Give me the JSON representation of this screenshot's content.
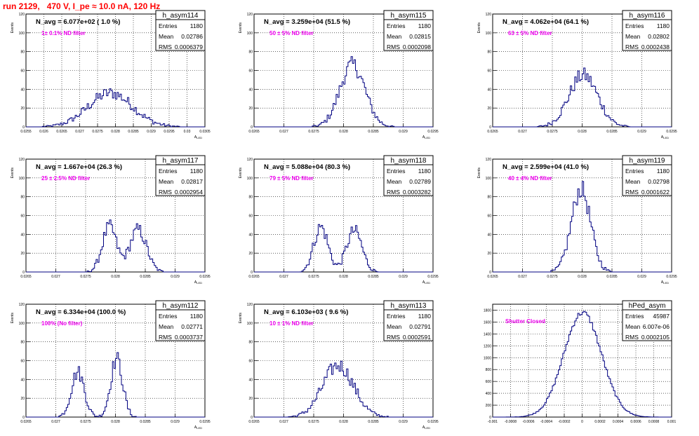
{
  "run_title": "run 2129,   470 V, I_pe ≈ 10.0 nA, 120 Hz",
  "chart_data": [
    {
      "type": "bar",
      "name": "h_asym114",
      "ylabel": "Events",
      "xlabel": "A_LED",
      "xlim": [
        0.0255,
        0.0305
      ],
      "ylim": [
        0,
        120
      ],
      "xticks": [
        "0.0255",
        "0.026",
        "0.0265",
        "0.027",
        "0.0275",
        "0.028",
        "0.0285",
        "0.029",
        "0.0295",
        "0.03",
        "0.0305"
      ],
      "yticks": [
        "0",
        "20",
        "40",
        "60",
        "80",
        "100",
        "120"
      ],
      "navg": "N_avg = 6.077e+02 ( 1.0 %)",
      "filter": "1± 0.1% ND filter",
      "stats": {
        "entries_label": "Entries",
        "entries": "1180",
        "mean_label": "Mean",
        "mean": "0.02786",
        "rms_label": "RMS",
        "rms": "0.0006379"
      },
      "mean": 0.02786,
      "rms": 0.0006379,
      "peaks": [
        {
          "center": 0.02786,
          "sigma": 0.00062,
          "height": 36
        }
      ]
    },
    {
      "type": "bar",
      "name": "h_asym115",
      "ylabel": "Events",
      "xlabel": "A_LED",
      "xlim": [
        0.0265,
        0.0295
      ],
      "ylim": [
        0,
        120
      ],
      "xticks": [
        "0.0265",
        "0.027",
        "0.0275",
        "0.028",
        "0.0285",
        "0.029",
        "0.0295"
      ],
      "yticks": [
        "0",
        "20",
        "40",
        "60",
        "80",
        "100",
        "120"
      ],
      "navg": "N_avg = 3.259e+04 (51.5 %)",
      "filter": "50 ± 5% ND filter",
      "stats": {
        "entries_label": "Entries",
        "entries": "1180",
        "mean_label": "Mean",
        "mean": "0.02815",
        "rms_label": "RMS",
        "rms": "0.0002098"
      },
      "mean": 0.02815,
      "rms": 0.0002098,
      "peaks": [
        {
          "center": 0.02815,
          "sigma": 0.00021,
          "height": 66
        }
      ]
    },
    {
      "type": "bar",
      "name": "h_asym116",
      "ylabel": "Events",
      "xlabel": "A_LED",
      "xlim": [
        0.0265,
        0.0295
      ],
      "ylim": [
        0,
        120
      ],
      "xticks": [
        "0.0265",
        "0.027",
        "0.0275",
        "0.028",
        "0.0285",
        "0.029",
        "0.0295"
      ],
      "yticks": [
        "0",
        "20",
        "40",
        "60",
        "80",
        "100",
        "120"
      ],
      "navg": "N_avg = 4.062e+04 (64.1 %)",
      "filter": "63 ± 5% ND filter",
      "stats": {
        "entries_label": "Entries",
        "entries": "1180",
        "mean_label": "Mean",
        "mean": "0.02802",
        "rms_label": "RMS",
        "rms": "0.0002438"
      },
      "mean": 0.02802,
      "rms": 0.0002438,
      "peaks": [
        {
          "center": 0.02802,
          "sigma": 0.00024,
          "height": 55
        }
      ]
    },
    {
      "type": "bar",
      "name": "h_asym117",
      "ylabel": "Events",
      "xlabel": "A_LED",
      "xlim": [
        0.0265,
        0.0295
      ],
      "ylim": [
        0,
        120
      ],
      "xticks": [
        "0.0265",
        "0.027",
        "0.0275",
        "0.028",
        "0.0285",
        "0.029",
        "0.0295"
      ],
      "yticks": [
        "0",
        "20",
        "40",
        "60",
        "80",
        "100",
        "120"
      ],
      "navg": "N_avg = 1.667e+04 (26.3 %)",
      "filter": "25 ± 2.5% ND filter",
      "stats": {
        "entries_label": "Entries",
        "entries": "1180",
        "mean_label": "Mean",
        "mean": "0.02817",
        "rms_label": "RMS",
        "rms": "0.0002954"
      },
      "mean": 0.02817,
      "rms": 0.0002954,
      "peaks": [
        {
          "center": 0.0279,
          "sigma": 0.00012,
          "height": 48
        },
        {
          "center": 0.02838,
          "sigma": 0.00014,
          "height": 45
        }
      ]
    },
    {
      "type": "bar",
      "name": "h_asym118",
      "ylabel": "Events",
      "xlabel": "A_LED",
      "xlim": [
        0.0265,
        0.0295
      ],
      "ylim": [
        0,
        120
      ],
      "xticks": [
        "0.0265",
        "0.027",
        "0.0275",
        "0.028",
        "0.0285",
        "0.029",
        "0.0295"
      ],
      "yticks": [
        "0",
        "20",
        "40",
        "60",
        "80",
        "100",
        "120"
      ],
      "navg": "N_avg = 5.088e+04 (80.3 %)",
      "filter": "79 ± 5% ND filter",
      "stats": {
        "entries_label": "Entries",
        "entries": "1180",
        "mean_label": "Mean",
        "mean": "0.02789",
        "rms_label": "RMS",
        "rms": "0.0003282"
      },
      "mean": 0.02789,
      "rms": 0.0003282,
      "peaks": [
        {
          "center": 0.02762,
          "sigma": 0.00012,
          "height": 48
        },
        {
          "center": 0.02818,
          "sigma": 0.00013,
          "height": 44
        }
      ]
    },
    {
      "type": "bar",
      "name": "h_asym119",
      "ylabel": "Events",
      "xlabel": "A_LED",
      "xlim": [
        0.0265,
        0.0295
      ],
      "ylim": [
        0,
        120
      ],
      "xticks": [
        "0.0265",
        "0.027",
        "0.0275",
        "0.028",
        "0.0285",
        "0.029",
        "0.0295"
      ],
      "yticks": [
        "0",
        "20",
        "40",
        "60",
        "80",
        "100",
        "120"
      ],
      "navg": "N_avg = 2.599e+04 (41.0 %)",
      "filter": "40 ± 4% ND filter",
      "stats": {
        "entries_label": "Entries",
        "entries": "1180",
        "mean_label": "Mean",
        "mean": "0.02798",
        "rms_label": "RMS",
        "rms": "0.0001622"
      },
      "mean": 0.02798,
      "rms": 0.0001622,
      "peaks": [
        {
          "center": 0.02798,
          "sigma": 0.00016,
          "height": 88
        }
      ]
    },
    {
      "type": "bar",
      "name": "h_asym112",
      "ylabel": "Events",
      "xlabel": "A_LED",
      "xlim": [
        0.0265,
        0.0295
      ],
      "ylim": [
        0,
        120
      ],
      "xticks": [
        "0.0265",
        "0.027",
        "0.0275",
        "0.028",
        "0.0285",
        "0.029",
        "0.0295"
      ],
      "yticks": [
        "0",
        "20",
        "40",
        "60",
        "80",
        "100",
        "120"
      ],
      "navg": "N_avg = 6.334e+04 (100.0 %)",
      "filter": "100% (No filter)",
      "stats": {
        "entries_label": "Entries",
        "entries": "1180",
        "mean_label": "Mean",
        "mean": "0.02771",
        "rms_label": "RMS",
        "rms": "0.0003737"
      },
      "mean": 0.02771,
      "rms": 0.0003737,
      "peaks": [
        {
          "center": 0.02737,
          "sigma": 0.00011,
          "height": 48
        },
        {
          "center": 0.02802,
          "sigma": 0.0001,
          "height": 62
        }
      ]
    },
    {
      "type": "bar",
      "name": "h_asym113",
      "ylabel": "Events",
      "xlabel": "A_LED",
      "xlim": [
        0.0265,
        0.0295
      ],
      "ylim": [
        0,
        120
      ],
      "xticks": [
        "0.0265",
        "0.027",
        "0.0275",
        "0.028",
        "0.0285",
        "0.029",
        "0.0295"
      ],
      "yticks": [
        "0",
        "20",
        "40",
        "60",
        "80",
        "100",
        "120"
      ],
      "navg": "N_avg = 6.103e+03 ( 9.6 %)",
      "filter": "10 ± 1% ND filter",
      "stats": {
        "entries_label": "Entries",
        "entries": "1180",
        "mean_label": "Mean",
        "mean": "0.02791",
        "rms_label": "RMS",
        "rms": "0.0002591"
      },
      "mean": 0.02791,
      "rms": 0.0002591,
      "peaks": [
        {
          "center": 0.02791,
          "sigma": 0.00026,
          "height": 55
        }
      ]
    },
    {
      "type": "bar",
      "name": "hPed_asym",
      "ylabel": "",
      "xlabel": "",
      "xlim": [
        -0.001,
        0.001
      ],
      "ylim": [
        0,
        1900
      ],
      "xticks": [
        "-0.001",
        "-0.0008",
        "-0.0006",
        "-0.0004",
        "-0.0002",
        "0",
        "0.0002",
        "0.0004",
        "0.0006",
        "0.0008",
        "0.001"
      ],
      "yticks": [
        "0",
        "200",
        "400",
        "600",
        "800",
        "1000",
        "1200",
        "1400",
        "1600",
        "1800"
      ],
      "navg": "",
      "filter": "Shutter Closed",
      "stats": {
        "entries_label": "Entries",
        "entries": "45987",
        "mean_label": "Mean",
        "mean": "6.007e-06",
        "rms_label": "RMS",
        "rms": "0.0002105"
      },
      "mean": 6.007e-06,
      "rms": 0.0002105,
      "peaks": [
        {
          "center": 6e-06,
          "sigma": 0.00021,
          "height": 1760
        }
      ]
    }
  ]
}
